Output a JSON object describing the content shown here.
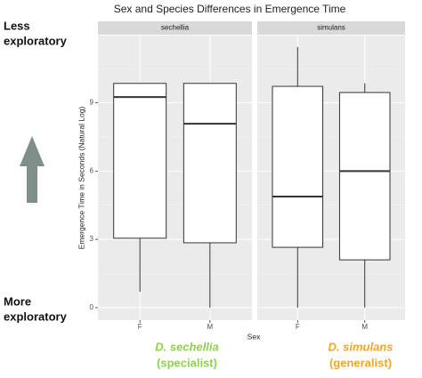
{
  "chart_data": {
    "type": "box",
    "title": "Sex and Species Differences in Emergence Time",
    "y_label": "Emergence Time in Seconds (Natural Log)",
    "x_label": "Sex",
    "ylim": [
      -0.55,
      11.95
    ],
    "yticks": [
      0,
      3,
      6,
      9
    ],
    "grid": true,
    "facets": [
      {
        "label": "sechellia",
        "categories": [
          "F",
          "M"
        ],
        "min": [
          0.7,
          0
        ],
        "q1": [
          3.05,
          2.85
        ],
        "median": [
          9.25,
          8.08
        ],
        "q3": [
          9.85,
          9.85
        ],
        "max": [
          9.85,
          9.85
        ]
      },
      {
        "label": "simulans",
        "categories": [
          "F",
          "M"
        ],
        "min": [
          0,
          0
        ],
        "q1": [
          2.65,
          2.1
        ],
        "median": [
          4.88,
          6.0
        ],
        "q3": [
          9.72,
          9.45
        ],
        "max": [
          11.45,
          9.85
        ]
      }
    ],
    "annotations": {
      "top": [
        "Less",
        "exploratory"
      ],
      "bottom": [
        "More",
        "exploratory"
      ]
    },
    "species": [
      {
        "name": "D. sechellia",
        "role": "(specialist)",
        "color": "#8fd14f"
      },
      {
        "name": "D. simulans",
        "role": "(generalist)",
        "color": "#f5a623"
      }
    ]
  }
}
